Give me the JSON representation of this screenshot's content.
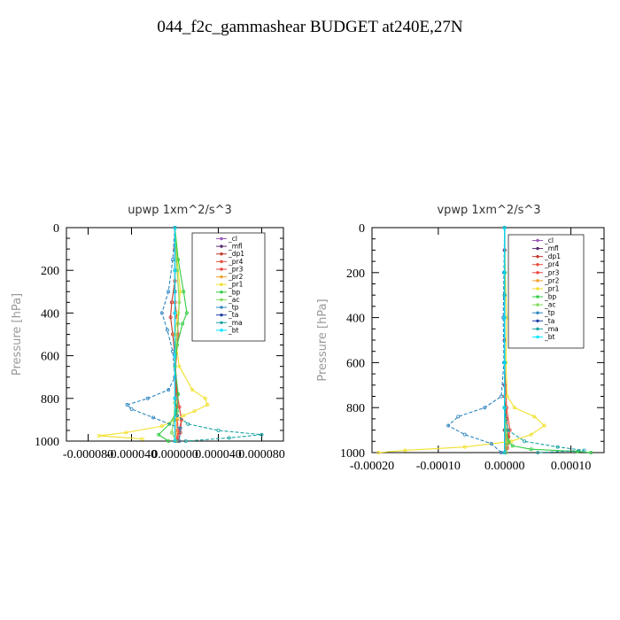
{
  "title": "044_f2c_gammashear  BUDGET at240E,27N",
  "legend_labels": [
    "_cl",
    "_mfl",
    "_dp1",
    "_pr4",
    "_pr3",
    "_pr2",
    "_pr1",
    "_bp",
    "_ac",
    "_tp",
    "_ta",
    "_ma",
    "_bt"
  ],
  "series_colors": {
    "_cl": "#9b59b6",
    "_mfl": "#5b2c6f",
    "_dp1": "#c0392b",
    "_pr4": "#e74c3c",
    "_pr3": "#e8433f",
    "_pr2": "#f0a030",
    "_pr1": "#f1e02a",
    "_bp": "#2ecc40",
    "_ac": "#7ed957",
    "_tp": "#2e86c1",
    "_ta": "#1f3fa8",
    "_ma": "#1aa3a3",
    "_bt": "#00e5ff"
  },
  "chart_data": [
    {
      "type": "line",
      "title": "upwp   1xm^2/s^3",
      "ylabel": "Pressure [hPa]",
      "xlim": [
        -0.0001,
        0.0001
      ],
      "ylim": [
        1000,
        0
      ],
      "x_ticks": [
        "-0.000080",
        "-0.000040",
        "0.000000",
        "0.000040",
        "0.000080"
      ],
      "x_tick_values": [
        -8e-05,
        -4e-05,
        0,
        4e-05,
        8e-05
      ],
      "y_ticks": [
        "0",
        "200",
        "400",
        "600",
        "800",
        "1000"
      ],
      "y_tick_values": [
        0,
        200,
        400,
        600,
        800,
        1000
      ],
      "legend": "top-right",
      "series": [
        {
          "name": "_cl",
          "x": [
            0,
            0,
            0,
            0,
            0,
            0,
            0,
            0,
            0,
            0,
            0
          ],
          "y": [
            0,
            100,
            200,
            300,
            400,
            500,
            600,
            700,
            800,
            900,
            1000
          ]
        },
        {
          "name": "_mfl",
          "x": [
            0,
            0,
            0,
            0,
            0,
            0,
            0,
            0,
            0,
            0,
            0
          ],
          "y": [
            0,
            100,
            200,
            300,
            400,
            500,
            600,
            700,
            800,
            900,
            1000
          ]
        },
        {
          "name": "_dp1",
          "x": [
            0,
            0,
            0,
            -3e-06,
            -4e-06,
            -2e-06,
            0,
            2e-06,
            4e-06,
            6e-06,
            5e-06,
            3e-06
          ],
          "y": [
            0,
            100,
            250,
            350,
            420,
            500,
            600,
            780,
            840,
            900,
            960,
            1000
          ]
        },
        {
          "name": "_pr4",
          "x": [
            0,
            0,
            0,
            2e-06,
            3e-06,
            0,
            4e-06,
            6e-06,
            2e-06
          ],
          "y": [
            0,
            200,
            350,
            420,
            500,
            700,
            840,
            900,
            1000
          ]
        },
        {
          "name": "_pr3",
          "x": [
            0,
            0,
            0,
            1e-06,
            2e-06,
            3e-06,
            1e-06
          ],
          "y": [
            0,
            300,
            500,
            800,
            880,
            950,
            1000
          ]
        },
        {
          "name": "_pr2",
          "x": [
            0,
            0,
            0,
            2e-06,
            1e-06,
            0
          ],
          "y": [
            0,
            400,
            800,
            900,
            960,
            1000
          ]
        },
        {
          "name": "_pr1",
          "x": [
            0,
            2e-06,
            5e-06,
            3e-06,
            0,
            4e-06,
            1.6e-05,
            2.8e-05,
            3e-05,
            1.8e-05,
            8e-06,
            -1.2e-05,
            -4.5e-05,
            -7e-05,
            -3e-05
          ],
          "y": [
            0,
            150,
            300,
            400,
            500,
            650,
            760,
            800,
            830,
            860,
            880,
            930,
            960,
            975,
            990
          ]
        },
        {
          "name": "_bp",
          "x": [
            0,
            3e-06,
            8e-06,
            1.1e-05,
            7e-06,
            2e-06,
            0,
            3e-06,
            2e-06,
            -5e-06,
            -1.5e-05,
            -6e-06
          ],
          "y": [
            0,
            150,
            300,
            400,
            450,
            550,
            650,
            780,
            860,
            920,
            970,
            1000
          ]
        },
        {
          "name": "_ac",
          "x": [
            0,
            2e-06,
            4e-06,
            3e-06,
            1e-06,
            0,
            0,
            -1e-06,
            -3e-06,
            1e-06
          ],
          "y": [
            0,
            200,
            350,
            450,
            550,
            700,
            820,
            900,
            960,
            1000
          ]
        },
        {
          "name": "_tp",
          "x": [
            0,
            -2e-06,
            -6e-06,
            -1.2e-05,
            -7e-06,
            -2e-06,
            0,
            -6e-06,
            -2.5e-05,
            -4.4e-05,
            -4e-05,
            -2e-05,
            5e-06,
            4e-06
          ],
          "y": [
            0,
            150,
            300,
            400,
            480,
            580,
            700,
            760,
            800,
            830,
            850,
            890,
            940,
            1000
          ]
        },
        {
          "name": "_ta",
          "x": [
            0,
            0,
            0,
            0,
            0,
            0
          ],
          "y": [
            0,
            200,
            400,
            600,
            800,
            1000
          ]
        },
        {
          "name": "_ma",
          "x": [
            0,
            0,
            0,
            0,
            2e-06,
            1.2e-05,
            4e-05,
            8e-05,
            5e-05,
            1e-05
          ],
          "y": [
            0,
            300,
            600,
            800,
            880,
            920,
            950,
            970,
            985,
            1000
          ]
        },
        {
          "name": "_bt",
          "x": [
            0,
            0,
            0,
            0,
            0,
            0
          ],
          "y": [
            0,
            200,
            400,
            600,
            800,
            1000
          ]
        }
      ]
    },
    {
      "type": "line",
      "title": "vpwp   1xm^2/s^3",
      "ylabel": "Pressure [hPa]",
      "xlim": [
        -0.0002,
        0.00015
      ],
      "ylim": [
        1000,
        0
      ],
      "x_ticks": [
        "-0.00020",
        "-0.00010",
        "0.00000",
        "0.00010"
      ],
      "x_tick_values": [
        -0.0002,
        -0.0001,
        0,
        0.0001
      ],
      "y_ticks": [
        "0",
        "200",
        "400",
        "600",
        "800",
        "1000"
      ],
      "y_tick_values": [
        0,
        200,
        400,
        600,
        800,
        1000
      ],
      "legend": "top-right",
      "series": [
        {
          "name": "_cl",
          "x": [
            0,
            0,
            0,
            0,
            0,
            0,
            0,
            0,
            0,
            0,
            0
          ],
          "y": [
            0,
            100,
            200,
            300,
            400,
            500,
            600,
            700,
            800,
            900,
            1000
          ]
        },
        {
          "name": "_mfl",
          "x": [
            0,
            0,
            0,
            0,
            0,
            0,
            0,
            0,
            0,
            0,
            0
          ],
          "y": [
            0,
            100,
            200,
            300,
            400,
            500,
            600,
            700,
            800,
            900,
            1000
          ]
        },
        {
          "name": "_dp1",
          "x": [
            0,
            0,
            0,
            0,
            3e-06,
            6e-06,
            4e-06,
            2e-06
          ],
          "y": [
            0,
            200,
            500,
            750,
            850,
            930,
            980,
            1000
          ]
        },
        {
          "name": "_pr4",
          "x": [
            0,
            0,
            0,
            3e-06,
            8e-06,
            5e-06,
            2e-06
          ],
          "y": [
            0,
            300,
            600,
            800,
            900,
            960,
            1000
          ]
        },
        {
          "name": "_pr3",
          "x": [
            0,
            0,
            0,
            2e-06,
            4e-06,
            1e-06
          ],
          "y": [
            0,
            400,
            800,
            900,
            960,
            1000
          ]
        },
        {
          "name": "_pr2",
          "x": [
            0,
            0,
            0,
            1e-06,
            2e-06,
            0
          ],
          "y": [
            0,
            400,
            800,
            900,
            960,
            1000
          ]
        },
        {
          "name": "_pr1",
          "x": [
            0,
            1e-06,
            3e-06,
            2e-06,
            4e-06,
            1.5e-05,
            4.5e-05,
            6e-05,
            4e-05,
            1e-05,
            -6e-05,
            -0.00015,
            -0.00019
          ],
          "y": [
            0,
            200,
            400,
            600,
            750,
            800,
            840,
            880,
            920,
            950,
            975,
            990,
            1000
          ]
        },
        {
          "name": "_bp",
          "x": [
            0,
            0,
            0,
            0,
            2e-06,
            6e-06,
            1.2e-05,
            4e-05,
            0.00011,
            0.00013
          ],
          "y": [
            0,
            300,
            600,
            800,
            900,
            950,
            970,
            985,
            995,
            1000
          ]
        },
        {
          "name": "_ac",
          "x": [
            0,
            0,
            0,
            0,
            2e-06,
            4e-06,
            2e-06
          ],
          "y": [
            0,
            300,
            600,
            800,
            900,
            960,
            1000
          ]
        },
        {
          "name": "_tp",
          "x": [
            0,
            -1e-06,
            -2e-06,
            -1e-06,
            -5e-06,
            -3e-05,
            -7e-05,
            -8.5e-05,
            -6e-05,
            -2e-05,
            -5e-06
          ],
          "y": [
            0,
            200,
            400,
            600,
            750,
            800,
            840,
            880,
            920,
            960,
            1000
          ]
        },
        {
          "name": "_ta",
          "x": [
            0,
            0,
            0,
            0,
            0,
            0
          ],
          "y": [
            0,
            200,
            400,
            600,
            800,
            1000
          ]
        },
        {
          "name": "_ma",
          "x": [
            0,
            0,
            0,
            0,
            5e-06,
            3e-05,
            8e-05,
            0.00012,
            5e-05
          ],
          "y": [
            0,
            300,
            600,
            800,
            900,
            950,
            975,
            990,
            1000
          ]
        },
        {
          "name": "_bt",
          "x": [
            0,
            0,
            0,
            0,
            0,
            0
          ],
          "y": [
            0,
            200,
            400,
            600,
            800,
            1000
          ]
        }
      ]
    }
  ]
}
